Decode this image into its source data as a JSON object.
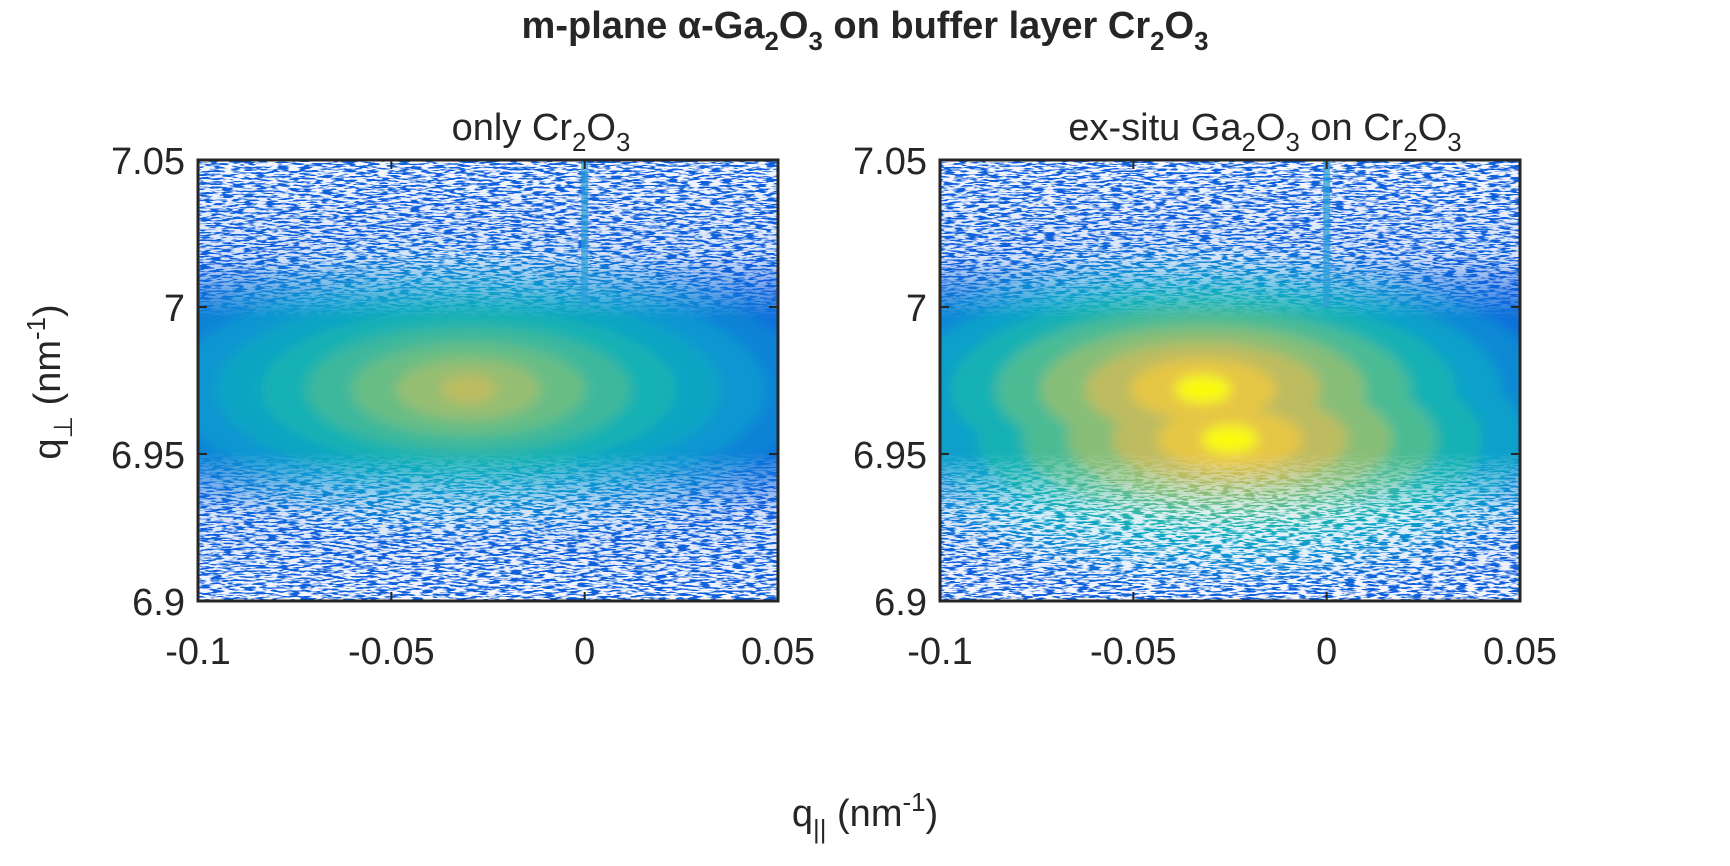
{
  "figure": {
    "title": {
      "pre": "m-plane α-Ga",
      "s1": "2",
      "mid1": "O",
      "s2": "3",
      "mid2": " on buffer layer Cr",
      "s3": "2",
      "mid3": "O",
      "s4": "3"
    },
    "xlabel": {
      "base": "q",
      "sub": "||",
      "unit": " (nm",
      "sup": "-1",
      "close": ")"
    },
    "ylabel": {
      "base": "q",
      "sub": "⊥",
      "unit": " (nm",
      "sup": "-1",
      "close": ")"
    }
  },
  "chart_data": [
    {
      "type": "heatmap",
      "title": {
        "pre": "only Cr",
        "s1": "2",
        "mid": "O",
        "s2": "3"
      },
      "xlim": [
        -0.1,
        0.05
      ],
      "ylim": [
        6.9,
        7.05
      ],
      "xticks": [
        -0.1,
        -0.05,
        0,
        0.05
      ],
      "xtick_labels": [
        "-0.1",
        "-0.05",
        "0",
        "0.05"
      ],
      "yticks": [
        6.9,
        6.95,
        7,
        7.05
      ],
      "ytick_labels": [
        "6.9",
        "6.95",
        "7",
        "7.05"
      ],
      "colormap": "parula",
      "peak": {
        "qx": -0.03,
        "qy": 6.972,
        "level": 0.8
      },
      "streak": {
        "qx": 0.0,
        "qy_from": 7.0,
        "qy_to": 7.05
      }
    },
    {
      "type": "heatmap",
      "title": {
        "pre": "ex-situ Ga",
        "s1": "2",
        "mid1": "O",
        "s2": "3",
        "mid2": " on Cr",
        "s3": "2",
        "mid3": "O",
        "s4": "3"
      },
      "xlim": [
        -0.1,
        0.05
      ],
      "ylim": [
        6.9,
        7.05
      ],
      "xticks": [
        -0.1,
        -0.05,
        0,
        0.05
      ],
      "xtick_labels": [
        "-0.1",
        "-0.05",
        "0",
        "0.05"
      ],
      "yticks": [
        6.9,
        6.95,
        7,
        7.05
      ],
      "ytick_labels": [
        "6.9",
        "6.95",
        "7",
        "7.05"
      ],
      "colormap": "parula",
      "peaks": [
        {
          "qx": -0.032,
          "qy": 6.972,
          "level": 1.0
        },
        {
          "qx": -0.025,
          "qy": 6.955,
          "level": 1.0
        }
      ],
      "streak": {
        "qx": 0.0,
        "qy_from": 7.0,
        "qy_to": 7.05
      }
    }
  ]
}
